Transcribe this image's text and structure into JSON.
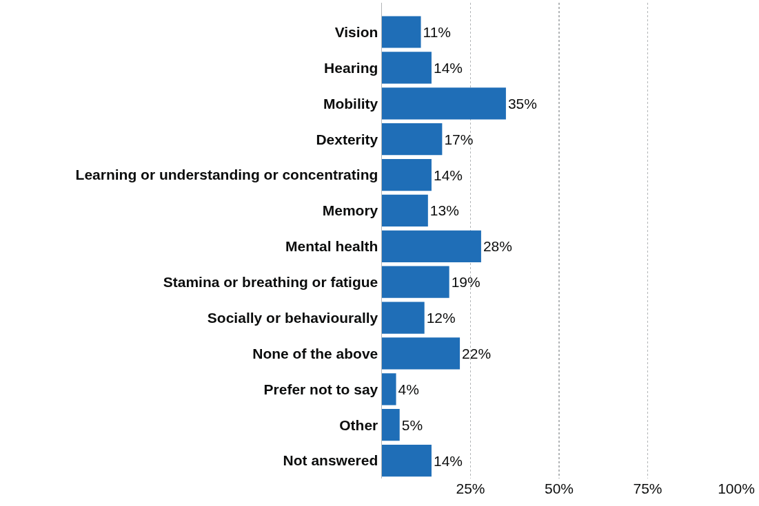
{
  "chart_data": {
    "type": "bar",
    "orientation": "horizontal",
    "categories": [
      "Vision",
      "Hearing",
      "Mobility",
      "Dexterity",
      "Learning or understanding or concentrating",
      "Memory",
      "Mental health",
      "Stamina or breathing or fatigue",
      "Socially or behaviourally",
      "None of the above",
      "Prefer not to say",
      "Other",
      "Not answered"
    ],
    "values": [
      11,
      14,
      35,
      17,
      14,
      13,
      28,
      19,
      12,
      22,
      4,
      5,
      14
    ],
    "value_labels": [
      "11%",
      "14%",
      "35%",
      "17%",
      "14%",
      "13%",
      "28%",
      "19%",
      "12%",
      "22%",
      "4%",
      "5%",
      "14%"
    ],
    "color": "#1f6eb7",
    "xlim": [
      0,
      100
    ],
    "xticks": [
      {
        "value": 25,
        "label": "25%"
      },
      {
        "value": 50,
        "label": "50%"
      },
      {
        "value": 75,
        "label": "75%"
      },
      {
        "value": 100,
        "label": "100%"
      }
    ],
    "grid": "x"
  }
}
